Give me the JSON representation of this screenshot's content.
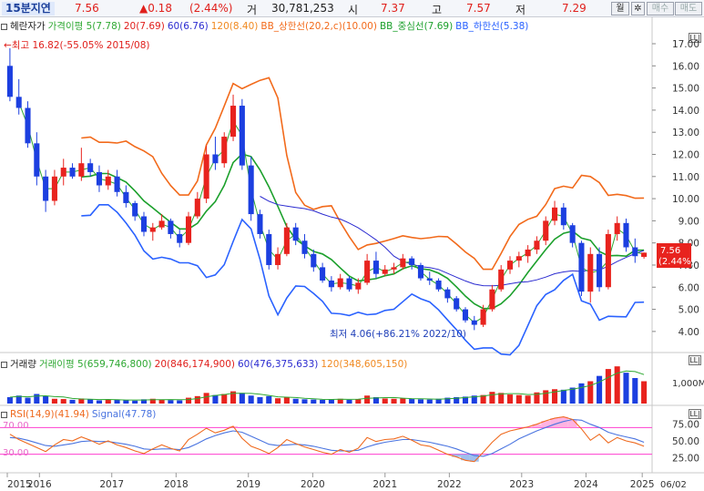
{
  "quote": {
    "title": "15분지연",
    "price": "7.56",
    "change": "▲0.18",
    "change_pct": "(2.44%)",
    "volume_label": "거",
    "volume": "30,781,253",
    "open_label": "시",
    "open": "7.37",
    "high_label": "고",
    "high": "7.57",
    "low_label": "저",
    "low": "7.29",
    "period": "월",
    "settings_icon": "gear-icon",
    "buy": "매수",
    "sell": "매도"
  },
  "legend_main": {
    "name": "헤란자가",
    "ma5": "가격이평 5(7.78)",
    "ma20": "20(7.69)",
    "ma60": "60(6.76)",
    "ma120": "120(8.40)",
    "bb_upper": "BB_상한선(20,2,c)(10.00)",
    "bb_mid": "BB_중심선(7.69)",
    "bb_lower": "BB_하한선(5.38)"
  },
  "legend_volume": {
    "name": "거래량",
    "ma5": "거래이평 5(659,746,800)",
    "ma20": "20(846,174,900)",
    "ma60": "60(476,375,633)",
    "ma120": "120(348,605,150)"
  },
  "legend_rsi": {
    "rsi": "RSI(14,9)(41.94)",
    "signal": "Signal(47.78)"
  },
  "annotations": {
    "high": "←최고 16.82(-55.05% 2015/08)",
    "low": "최저 4.06(+86.21% 2022/10)"
  },
  "price_tag": {
    "value": "7.56",
    "pct": "(2.44%)"
  },
  "volume_axis_max": "1,000M",
  "rsi_levels": {
    "upper": "70.00",
    "lower": "30.00"
  },
  "x_end_label": "06/02",
  "colors": {
    "up": "#e8231e",
    "down": "#1c3fe0",
    "ma5": "#2ea832",
    "ma20": "#e0201c",
    "ma60": "#2b2bd0",
    "ma120": "#f08a22",
    "bb_upper": "#f26a1b",
    "bb_mid": "#1ca02c",
    "bb_lower": "#2a62ff",
    "rsi": "#ef6a1f",
    "signal": "#4a74e0",
    "rsi_band": "#ff3fd0"
  },
  "chart_data": {
    "type": "candlestick",
    "x_ticks": [
      "2015",
      "2016",
      "2017",
      "2018",
      "2019",
      "2020",
      "2021",
      "2022",
      "2023",
      "2024",
      "2025"
    ],
    "price_axis": {
      "ticks": [
        4.0,
        5.0,
        6.0,
        7.0,
        8.0,
        9.0,
        10.0,
        11.0,
        12.0,
        13.0,
        14.0,
        15.0,
        16.0,
        17.0
      ],
      "ylim": [
        3.5,
        17.7
      ]
    },
    "candles": [
      [
        16.0,
        16.8,
        14.4,
        14.6
      ],
      [
        14.6,
        15.4,
        13.8,
        14.1
      ],
      [
        14.1,
        14.4,
        12.3,
        12.5
      ],
      [
        12.5,
        13.0,
        10.6,
        11.0
      ],
      [
        11.0,
        11.3,
        9.4,
        9.9
      ],
      [
        9.9,
        11.3,
        9.7,
        11.0
      ],
      [
        11.0,
        11.8,
        10.6,
        11.4
      ],
      [
        11.4,
        11.6,
        10.9,
        11.0
      ],
      [
        11.0,
        12.3,
        10.8,
        11.6
      ],
      [
        11.6,
        11.8,
        11.0,
        11.2
      ],
      [
        11.2,
        11.5,
        10.3,
        10.6
      ],
      [
        10.6,
        11.3,
        10.4,
        11.0
      ],
      [
        11.0,
        11.3,
        10.1,
        10.3
      ],
      [
        10.3,
        10.6,
        9.6,
        9.8
      ],
      [
        9.8,
        9.9,
        9.0,
        9.2
      ],
      [
        9.2,
        9.4,
        8.3,
        8.5
      ],
      [
        8.5,
        8.9,
        8.1,
        8.7
      ],
      [
        8.7,
        9.3,
        8.6,
        9.0
      ],
      [
        9.0,
        9.1,
        8.2,
        8.4
      ],
      [
        8.4,
        8.6,
        7.8,
        8.0
      ],
      [
        8.0,
        9.4,
        7.9,
        9.2
      ],
      [
        9.2,
        10.3,
        9.1,
        10.0
      ],
      [
        10.0,
        12.4,
        9.8,
        12.0
      ],
      [
        12.0,
        12.8,
        11.3,
        11.6
      ],
      [
        11.6,
        13.0,
        11.4,
        12.8
      ],
      [
        12.8,
        14.7,
        12.6,
        14.2
      ],
      [
        14.2,
        14.5,
        11.3,
        11.5
      ],
      [
        11.5,
        11.9,
        9.0,
        9.3
      ],
      [
        9.3,
        9.5,
        8.2,
        8.4
      ],
      [
        8.4,
        8.6,
        6.8,
        7.0
      ],
      [
        7.0,
        7.8,
        6.8,
        7.5
      ],
      [
        7.5,
        8.9,
        7.4,
        8.7
      ],
      [
        8.7,
        8.9,
        7.9,
        8.1
      ],
      [
        8.1,
        8.4,
        7.3,
        7.5
      ],
      [
        7.5,
        7.7,
        6.7,
        6.9
      ],
      [
        6.9,
        7.1,
        6.2,
        6.3
      ],
      [
        6.3,
        6.5,
        5.8,
        6.0
      ],
      [
        6.0,
        6.6,
        5.9,
        6.4
      ],
      [
        6.4,
        6.5,
        5.8,
        5.9
      ],
      [
        5.9,
        6.4,
        5.7,
        6.2
      ],
      [
        6.2,
        7.5,
        6.1,
        7.2
      ],
      [
        7.2,
        7.6,
        6.4,
        6.6
      ],
      [
        6.6,
        7.0,
        6.5,
        6.8
      ],
      [
        6.8,
        7.1,
        6.6,
        6.9
      ],
      [
        6.9,
        7.5,
        6.8,
        7.3
      ],
      [
        7.3,
        7.4,
        6.8,
        7.0
      ],
      [
        7.0,
        7.1,
        6.3,
        6.4
      ],
      [
        6.4,
        6.7,
        6.1,
        6.3
      ],
      [
        6.3,
        6.4,
        5.8,
        5.9
      ],
      [
        5.9,
        6.0,
        5.3,
        5.5
      ],
      [
        5.5,
        5.6,
        4.9,
        5.0
      ],
      [
        5.0,
        5.1,
        4.4,
        4.5
      ],
      [
        4.5,
        4.7,
        4.06,
        4.3
      ],
      [
        4.3,
        5.2,
        4.2,
        5.0
      ],
      [
        5.0,
        6.1,
        4.9,
        5.9
      ],
      [
        5.9,
        7.0,
        5.8,
        6.8
      ],
      [
        6.8,
        7.4,
        6.6,
        7.2
      ],
      [
        7.2,
        7.6,
        6.9,
        7.4
      ],
      [
        7.4,
        7.9,
        7.1,
        7.7
      ],
      [
        7.7,
        8.3,
        7.5,
        8.1
      ],
      [
        8.1,
        9.2,
        7.9,
        9.0
      ],
      [
        9.0,
        9.9,
        8.8,
        9.6
      ],
      [
        9.6,
        9.8,
        8.6,
        8.8
      ],
      [
        8.8,
        8.9,
        7.8,
        8.0
      ],
      [
        8.0,
        8.1,
        5.6,
        5.8
      ],
      [
        5.8,
        7.8,
        5.3,
        7.5
      ],
      [
        7.5,
        7.8,
        5.8,
        6.0
      ],
      [
        6.0,
        8.6,
        5.9,
        8.4
      ],
      [
        8.4,
        9.2,
        8.1,
        8.9
      ],
      [
        8.9,
        9.1,
        7.6,
        7.8
      ],
      [
        7.8,
        8.2,
        7.1,
        7.4
      ],
      [
        7.37,
        7.57,
        7.29,
        7.56
      ]
    ],
    "volume_axis": {
      "ticks": [
        "1,000M"
      ]
    },
    "volume": [
      120,
      150,
      110,
      180,
      140,
      90,
      85,
      70,
      95,
      80,
      60,
      75,
      70,
      65,
      55,
      80,
      90,
      70,
      65,
      60,
      110,
      140,
      200,
      160,
      180,
      230,
      200,
      150,
      120,
      140,
      100,
      120,
      90,
      80,
      75,
      70,
      85,
      90,
      70,
      80,
      150,
      120,
      95,
      90,
      100,
      85,
      80,
      75,
      90,
      110,
      120,
      130,
      150,
      160,
      220,
      200,
      170,
      160,
      150,
      210,
      250,
      270,
      260,
      300,
      380,
      420,
      520,
      650,
      700,
      580,
      480,
      420
    ],
    "rsi_axis": {
      "ticks": [
        25.0,
        50.0,
        75.0
      ],
      "ylim": [
        5,
        95
      ]
    },
    "rsi": [
      60,
      52,
      46,
      40,
      34,
      44,
      52,
      50,
      56,
      51,
      45,
      50,
      44,
      40,
      35,
      31,
      38,
      44,
      39,
      35,
      52,
      60,
      69,
      62,
      66,
      72,
      54,
      42,
      37,
      31,
      40,
      52,
      46,
      41,
      37,
      33,
      30,
      37,
      33,
      39,
      55,
      49,
      52,
      53,
      57,
      51,
      44,
      42,
      36,
      30,
      26,
      21,
      19,
      33,
      48,
      60,
      65,
      68,
      71,
      75,
      80,
      84,
      86,
      82,
      68,
      51,
      60,
      47,
      55,
      50,
      47,
      42
    ],
    "signal": [
      55,
      54,
      51,
      47,
      43,
      42,
      44,
      46,
      49,
      50,
      49,
      49,
      47,
      45,
      42,
      38,
      37,
      38,
      38,
      37,
      40,
      46,
      53,
      58,
      62,
      65,
      63,
      57,
      51,
      45,
      43,
      44,
      45,
      44,
      42,
      39,
      36,
      35,
      35,
      36,
      41,
      45,
      48,
      50,
      52,
      52,
      50,
      48,
      45,
      42,
      38,
      33,
      28,
      27,
      31,
      38,
      45,
      53,
      59,
      65,
      70,
      75,
      79,
      82,
      81,
      75,
      70,
      63,
      59,
      56,
      53,
      48
    ]
  }
}
